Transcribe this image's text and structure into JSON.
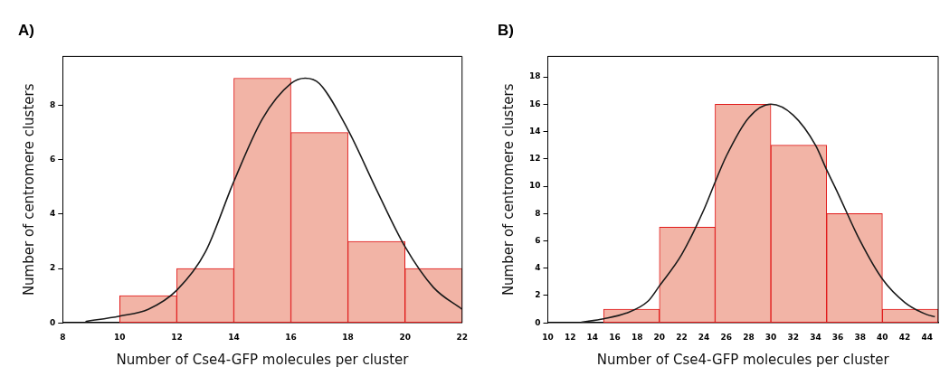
{
  "chart_data": [
    {
      "type": "histogram",
      "title": "A)",
      "xlabel": "Number of Cse4-GFP molecules per cluster",
      "ylabel": "Number of centromere clusters",
      "xlim": [
        8,
        22
      ],
      "xticks": [
        8,
        10,
        12,
        14,
        16,
        18,
        20,
        22
      ],
      "ylim": [
        0,
        9.8
      ],
      "yticks": [
        0,
        2,
        4,
        6,
        8
      ],
      "grid": false,
      "legend": false,
      "series": [
        {
          "color": "#f2b4a6",
          "bins": [
            10,
            12,
            14,
            16,
            18,
            20,
            22
          ],
          "values": [
            1,
            2,
            9,
            7,
            3,
            2
          ]
        },
        {
          "type": "line",
          "color": "#1a1a1a",
          "marker": "none",
          "x": [
            8.8,
            10,
            11,
            12,
            13,
            14,
            15,
            16,
            16.5,
            17,
            18,
            19,
            20,
            21,
            22
          ],
          "values": [
            0.05,
            0.25,
            0.5,
            1.2,
            2.6,
            5.2,
            7.5,
            8.8,
            9,
            8.8,
            7.1,
            4.9,
            2.8,
            1.3,
            0.5
          ]
        }
      ]
    },
    {
      "type": "histogram",
      "title": "B)",
      "xlabel": "Number of Cse4-GFP molecules per cluster",
      "ylabel": "Number of centromere clusters",
      "xlim": [
        10,
        45
      ],
      "xticks": [
        10,
        12,
        14,
        16,
        18,
        20,
        22,
        24,
        26,
        28,
        30,
        32,
        34,
        36,
        38,
        40,
        42,
        44
      ],
      "ylim": [
        0,
        19.5
      ],
      "yticks": [
        0,
        2,
        4,
        6,
        8,
        10,
        12,
        14,
        16,
        18
      ],
      "grid": false,
      "legend": false,
      "series": [
        {
          "color": "#f2b4a6",
          "bins": [
            15,
            20,
            25,
            30,
            35,
            40,
            45
          ],
          "values": [
            1,
            7,
            16,
            13,
            8,
            1
          ]
        },
        {
          "type": "line",
          "color": "#1a1a1a",
          "marker": "none",
          "x": [
            13,
            15,
            17,
            19,
            20,
            22,
            24,
            25,
            26,
            28,
            30,
            32,
            34,
            35,
            36,
            38,
            40,
            42,
            44,
            44.7
          ],
          "values": [
            0.05,
            0.3,
            0.7,
            1.6,
            2.7,
            5,
            8.3,
            10.3,
            12.2,
            15,
            16,
            15.2,
            13,
            11.2,
            9.5,
            6,
            3.2,
            1.5,
            0.6,
            0.45
          ]
        }
      ]
    }
  ]
}
